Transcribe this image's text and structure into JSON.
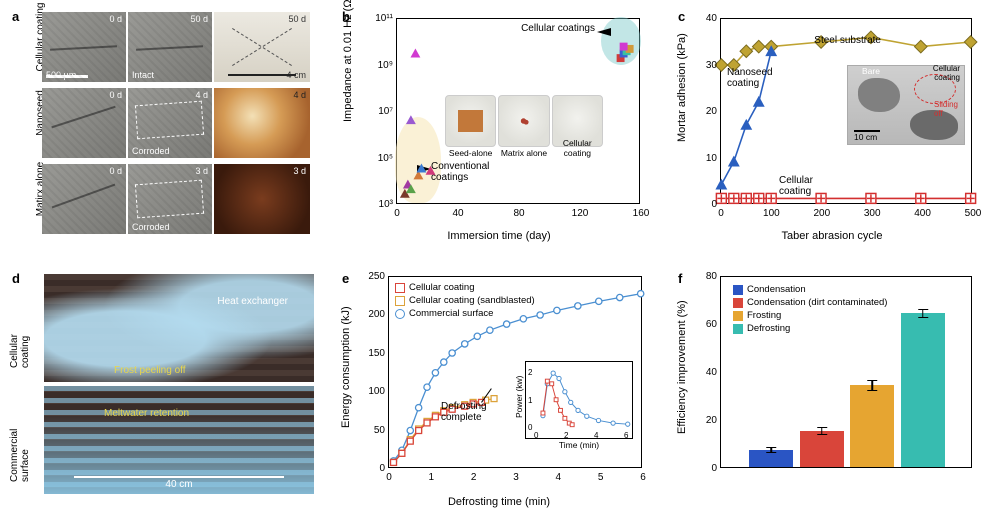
{
  "panel_labels": {
    "a": "a",
    "b": "b",
    "c": "c",
    "d": "d",
    "e": "e",
    "f": "f"
  },
  "a": {
    "rows": [
      {
        "label": "Cellular\ncoating",
        "t0_day": "0 d",
        "t1_day": "50 d",
        "t1_state": "Intact",
        "photo_day": "50 d",
        "photo_class": "photo0"
      },
      {
        "label": "Nanoseed\nalone",
        "t0_day": "0 d",
        "t1_day": "4 d",
        "t1_state": "Corroded",
        "photo_day": "4 d",
        "photo_class": "photo1"
      },
      {
        "label": "Matirx\nalone",
        "t0_day": "0 d",
        "t1_day": "3 d",
        "t1_state": "Corroded",
        "photo_day": "3 d",
        "photo_class": "photo2"
      }
    ],
    "scalebar_um": "500 μm",
    "scalebar_cm": "4 cm"
  },
  "b": {
    "xlabel": "Immersion time (day)",
    "ylabel": "Impedance at 0.01 Hz (Ω cm²)",
    "x_range": [
      0,
      160
    ],
    "x_ticks": [
      0,
      40,
      80,
      120,
      160
    ],
    "y_range_log": [
      3,
      11
    ],
    "y_ticks": [
      "10³",
      "10⁵",
      "10⁷",
      "10⁹",
      "10¹¹"
    ],
    "ann_cell": "Cellular coatings",
    "ann_conv": "Conventional\ncoatings",
    "conv_points": [
      {
        "x": 5,
        "y": 3.4,
        "shape": "tri",
        "color": "#7a3a2a"
      },
      {
        "x": 7,
        "y": 3.8,
        "shape": "tri",
        "color": "#a23aa2"
      },
      {
        "x": 9,
        "y": 3.6,
        "shape": "tri",
        "color": "#5aa24a"
      },
      {
        "x": 14,
        "y": 4.2,
        "shape": "tri",
        "color": "#d17a3a"
      },
      {
        "x": 16,
        "y": 4.5,
        "shape": "tri",
        "color": "#3a7ad1"
      },
      {
        "x": 22,
        "y": 4.4,
        "shape": "tri",
        "color": "#d13a7a"
      },
      {
        "x": 9,
        "y": 6.6,
        "shape": "tri",
        "color": "#9a5ad1"
      },
      {
        "x": 12,
        "y": 9.5,
        "shape": "tri",
        "color": "#d13ad1"
      }
    ],
    "cell_points": [
      {
        "x": 148,
        "y": 9.3,
        "color": "#d13a3a"
      },
      {
        "x": 150,
        "y": 9.5,
        "color": "#3a60d1"
      },
      {
        "x": 152,
        "y": 9.6,
        "color": "#3ac1a0"
      },
      {
        "x": 154,
        "y": 9.7,
        "color": "#d19a3a"
      },
      {
        "x": 150,
        "y": 9.8,
        "color": "#d13ad1"
      }
    ],
    "inset_caps": [
      "Seed-alone",
      "Matrix alone",
      "Cellular coating"
    ]
  },
  "c": {
    "xlabel": "Taber abrasion cycle",
    "ylabel": "Mortar adhesion (kPa)",
    "x_range": [
      0,
      500
    ],
    "x_ticks": [
      0,
      100,
      200,
      300,
      400,
      500
    ],
    "y_range": [
      0,
      40
    ],
    "y_ticks": [
      0,
      10,
      20,
      30,
      40
    ],
    "series_steel": {
      "label": "Steel substrate",
      "color": "#bfa332",
      "points": [
        [
          0,
          30
        ],
        [
          25,
          30
        ],
        [
          50,
          33
        ],
        [
          75,
          34
        ],
        [
          100,
          34
        ],
        [
          200,
          35
        ],
        [
          300,
          36
        ],
        [
          400,
          34
        ],
        [
          500,
          35
        ]
      ]
    },
    "series_nano": {
      "label": "Nanoseed\ncoating",
      "color": "#2a5fbf",
      "points": [
        [
          0,
          4
        ],
        [
          25,
          9
        ],
        [
          50,
          17
        ],
        [
          75,
          22
        ],
        [
          100,
          33
        ]
      ]
    },
    "series_cell": {
      "label": "Cellular\ncoating",
      "color": "#d32f2f",
      "points": [
        [
          0,
          1
        ],
        [
          25,
          1
        ],
        [
          50,
          1
        ],
        [
          75,
          1
        ],
        [
          100,
          1
        ],
        [
          200,
          1
        ],
        [
          300,
          1
        ],
        [
          400,
          1
        ],
        [
          500,
          1
        ]
      ]
    },
    "inset_bare": "Bare",
    "inset_cell": "Cellular\ncoating",
    "inset_slide": "Sliding\noff",
    "inset_scale": "10 cm"
  },
  "d": {
    "top_label": "Cellular\ncoating",
    "bot_label": "Commercial\nsurface",
    "text_heat": "Heat exchanger",
    "text_frost": "Frost peeling off",
    "text_melt": "Meltwater retention",
    "scale": "40 cm"
  },
  "e": {
    "xlabel": "Defrosting time (min)",
    "ylabel": "Energy consumption (kJ)",
    "x_range": [
      0,
      6
    ],
    "x_ticks": [
      0,
      1,
      2,
      3,
      4,
      5,
      6
    ],
    "y_range": [
      0,
      250
    ],
    "y_ticks": [
      0,
      50,
      100,
      150,
      200,
      250
    ],
    "legend": [
      {
        "label": "Cellular coating",
        "color": "#d9453a",
        "shape": "sq"
      },
      {
        "label": "Cellular coating (sandblasted)",
        "color": "#dca23a",
        "shape": "sq"
      },
      {
        "label": "Commercial surface",
        "color": "#4a8fd1",
        "shape": "circ"
      }
    ],
    "series": {
      "comm": {
        "color": "#4a8fd1",
        "pts": [
          [
            0.1,
            8
          ],
          [
            0.3,
            22
          ],
          [
            0.5,
            48
          ],
          [
            0.7,
            78
          ],
          [
            0.9,
            105
          ],
          [
            1.1,
            124
          ],
          [
            1.3,
            138
          ],
          [
            1.5,
            150
          ],
          [
            1.8,
            162
          ],
          [
            2.1,
            172
          ],
          [
            2.4,
            180
          ],
          [
            2.8,
            188
          ],
          [
            3.2,
            195
          ],
          [
            3.6,
            200
          ],
          [
            4.0,
            206
          ],
          [
            4.5,
            212
          ],
          [
            5.0,
            218
          ],
          [
            5.5,
            223
          ],
          [
            6.0,
            228
          ]
        ]
      },
      "cell": {
        "color": "#d9453a",
        "pts": [
          [
            0.1,
            6
          ],
          [
            0.3,
            18
          ],
          [
            0.5,
            34
          ],
          [
            0.7,
            48
          ],
          [
            0.9,
            58
          ],
          [
            1.1,
            66
          ],
          [
            1.3,
            72
          ],
          [
            1.5,
            76
          ],
          [
            1.8,
            80
          ],
          [
            2.0,
            83
          ],
          [
            2.2,
            85
          ]
        ]
      },
      "sand": {
        "color": "#dca23a",
        "pts": [
          [
            0.1,
            6
          ],
          [
            0.3,
            18
          ],
          [
            0.5,
            36
          ],
          [
            0.7,
            50
          ],
          [
            0.9,
            60
          ],
          [
            1.1,
            68
          ],
          [
            1.3,
            74
          ],
          [
            1.5,
            78
          ],
          [
            1.8,
            82
          ],
          [
            2.0,
            85
          ],
          [
            2.3,
            88
          ],
          [
            2.5,
            90
          ]
        ]
      }
    },
    "ann_complete": "Defrosting\ncomplete",
    "inset": {
      "xlabel": "Time (min)",
      "ylabel": "Power (kw)",
      "x_ticks": [
        0,
        2,
        4,
        6
      ],
      "y_ticks": [
        0,
        1,
        2
      ],
      "comm": {
        "color": "#4a8fd1",
        "pts": [
          [
            0.2,
            0.4
          ],
          [
            0.5,
            1.6
          ],
          [
            0.9,
            2.0
          ],
          [
            1.3,
            1.8
          ],
          [
            1.7,
            1.3
          ],
          [
            2.1,
            0.9
          ],
          [
            2.6,
            0.6
          ],
          [
            3.2,
            0.38
          ],
          [
            4.0,
            0.22
          ],
          [
            5.0,
            0.12
          ],
          [
            6.0,
            0.08
          ]
        ]
      },
      "cell": {
        "color": "#d9453a",
        "pts": [
          [
            0.2,
            0.5
          ],
          [
            0.5,
            1.7
          ],
          [
            0.8,
            1.6
          ],
          [
            1.1,
            1.0
          ],
          [
            1.4,
            0.6
          ],
          [
            1.7,
            0.3
          ],
          [
            2.0,
            0.12
          ],
          [
            2.2,
            0.06
          ]
        ]
      }
    }
  },
  "f": {
    "ylabel": "Efficiency improvement (%)",
    "y_range": [
      0,
      80
    ],
    "y_ticks": [
      0,
      20,
      40,
      60,
      80
    ],
    "legend": [
      {
        "label": "Condensation",
        "color": "#2a55c4"
      },
      {
        "label": "Condensation (dirt contaminated)",
        "color": "#d9453a"
      },
      {
        "label": "Frosting",
        "color": "#e6a531"
      },
      {
        "label": "Defrosting",
        "color": "#37bcb0"
      }
    ],
    "bars": [
      {
        "color": "#2a55c4",
        "value": 7,
        "err": 1.2
      },
      {
        "color": "#d9453a",
        "value": 15,
        "err": 1.8
      },
      {
        "color": "#e6a531",
        "value": 34,
        "err": 2.2
      },
      {
        "color": "#37bcb0",
        "value": 64,
        "err": 2.0
      }
    ]
  }
}
